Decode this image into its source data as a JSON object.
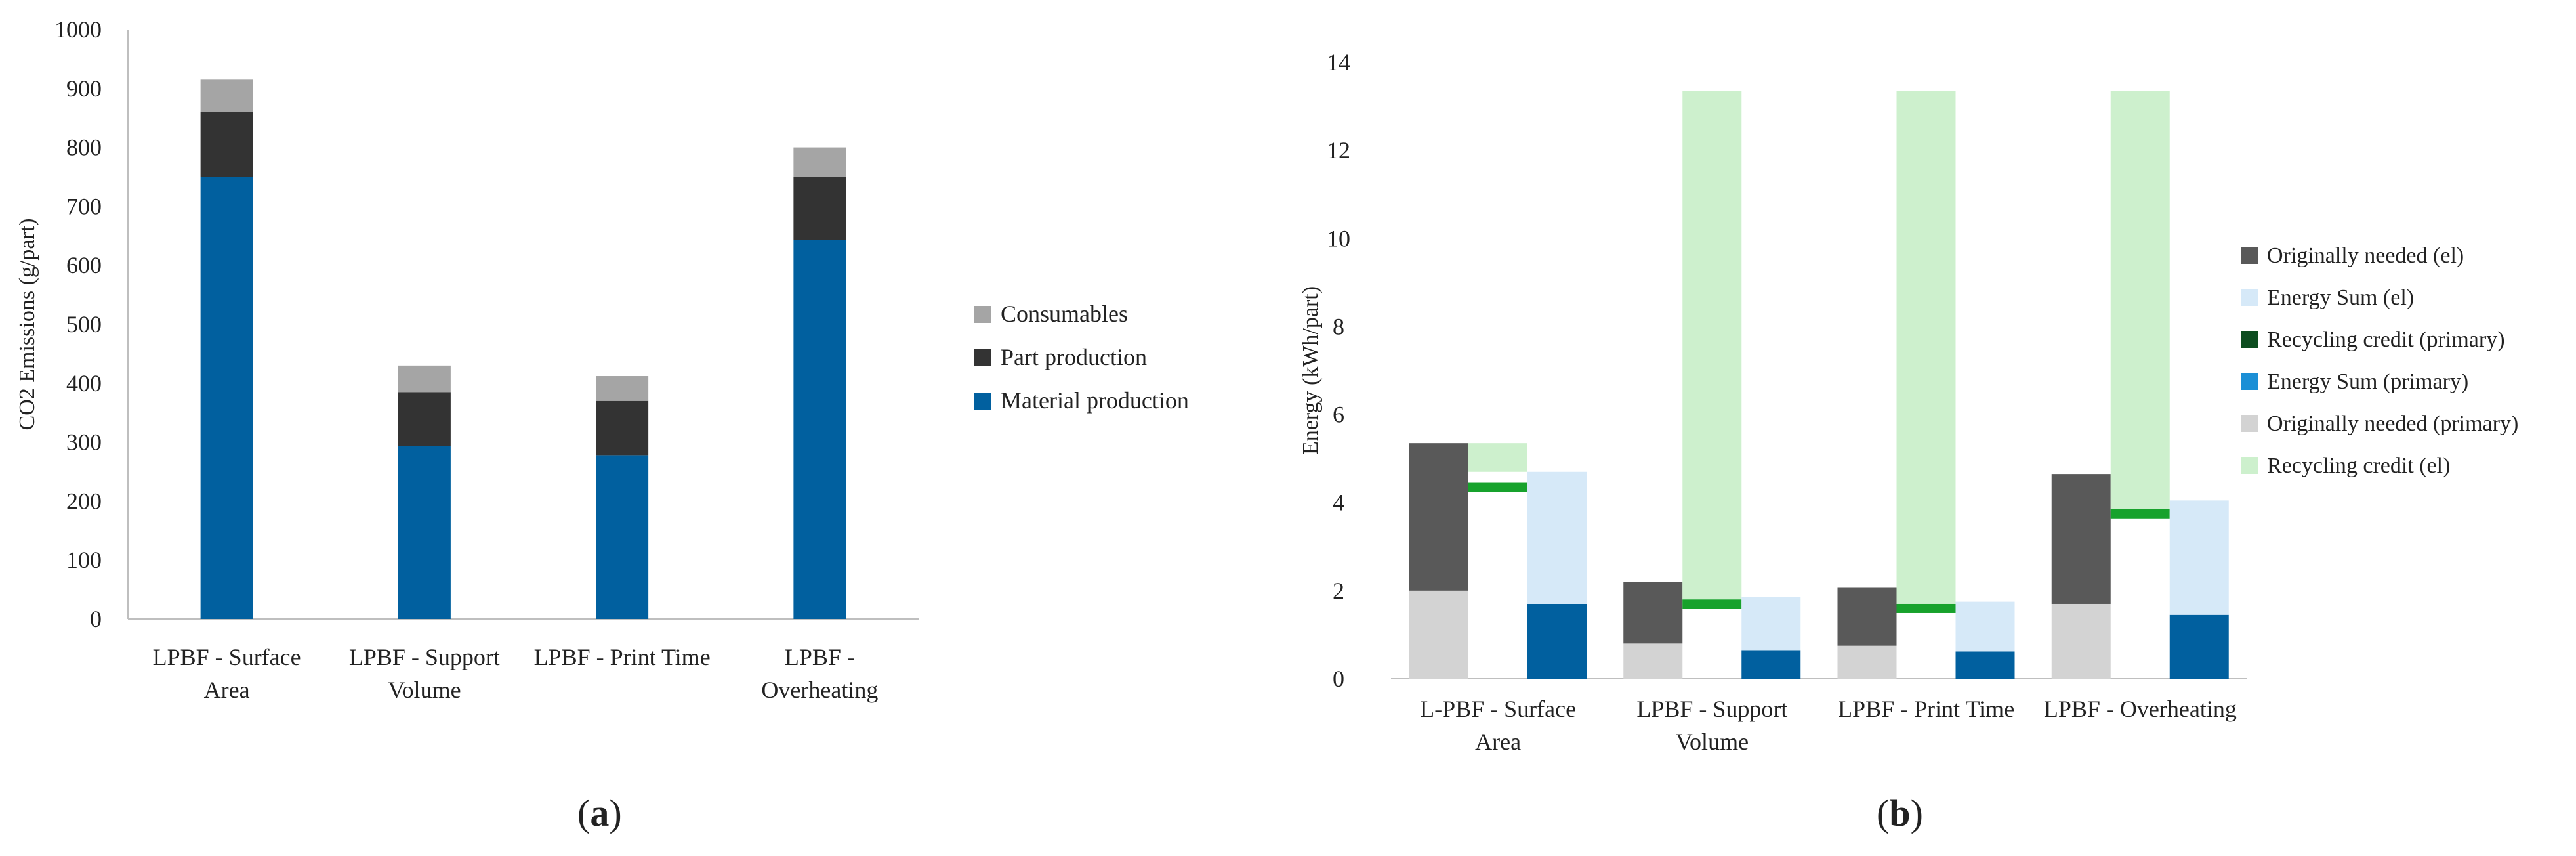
{
  "panel_labels": {
    "a": "a",
    "b": "b"
  },
  "chart_data": [
    {
      "type": "bar",
      "stacked": true,
      "title": "",
      "xlabel": "",
      "ylabel": "CO2 Emissions (g/part)",
      "ylim": [
        0,
        1000
      ],
      "yticks": [
        "0",
        "100",
        "200",
        "300",
        "400",
        "500",
        "600",
        "700",
        "800",
        "900",
        "1000"
      ],
      "categories": [
        [
          "LPBF - Surface",
          "Area"
        ],
        [
          "LPBF - Support",
          "Volume"
        ],
        [
          "LPBF - Print Time"
        ],
        [
          "LPBF -",
          "Overheating"
        ]
      ],
      "legend_position": "right",
      "series": [
        {
          "name": "Material production",
          "color": "#01609f",
          "values": [
            750,
            293,
            278,
            643
          ]
        },
        {
          "name": "Part production",
          "color": "#333333",
          "values": [
            110,
            92,
            92,
            107
          ]
        },
        {
          "name": "Consumables",
          "color": "#a5a5a5",
          "values": [
            55,
            45,
            42,
            50
          ]
        }
      ],
      "legend_order": [
        "Consumables",
        "Part production",
        "Material production"
      ]
    },
    {
      "type": "bar",
      "stacked": true,
      "title": "",
      "xlabel": "",
      "ylabel": "Energy (kWh/part)",
      "ylim": [
        0,
        14
      ],
      "yticks": [
        "0",
        "2",
        "4",
        "6",
        "8",
        "10",
        "12",
        "14"
      ],
      "categories": [
        [
          "L-PBF - Surface",
          "Area"
        ],
        [
          "LPBF - Support",
          "Volume"
        ],
        [
          "LPBF - Print Time"
        ],
        [
          "LPBF - Overheating"
        ]
      ],
      "legend_position": "right",
      "bar_groups": [
        {
          "needed_primary": 2.0,
          "needed_el": 3.35,
          "credit_el_low": 4.7,
          "credit_el_high": 5.35,
          "credit_primary_low": 4.25,
          "credit_primary_high": 4.45,
          "sum_primary": 1.7,
          "sum_el": 4.7
        },
        {
          "needed_primary": 0.8,
          "needed_el": 1.4,
          "credit_el_low": 1.8,
          "credit_el_high": 13.35,
          "credit_primary_low": 1.65,
          "credit_primary_high": 1.8,
          "sum_primary": 0.65,
          "sum_el": 1.85
        },
        {
          "needed_primary": 0.75,
          "needed_el": 1.33,
          "credit_el_low": 1.7,
          "credit_el_high": 13.35,
          "credit_primary_low": 1.6,
          "credit_primary_high": 1.7,
          "sum_primary": 0.62,
          "sum_el": 1.75
        },
        {
          "needed_primary": 1.7,
          "needed_el": 2.95,
          "credit_el_low": 3.8,
          "credit_el_high": 13.35,
          "credit_primary_low": 3.65,
          "credit_primary_high": 3.85,
          "sum_primary": 1.45,
          "sum_el": 4.05
        }
      ],
      "series": [
        {
          "name": "Originally needed (el)",
          "color": "#595959"
        },
        {
          "name": "Energy Sum (el)",
          "color": "#d6e9f8"
        },
        {
          "name": "Recycling credit (primary)",
          "color": "#0d4d1f"
        },
        {
          "name": "Energy Sum (primary)",
          "color": "#1b8fd6"
        },
        {
          "name": "Originally needed (primary)",
          "color": "#d3d3d3"
        },
        {
          "name": "Recycling credit (el)",
          "color": "#cdf0cd"
        }
      ],
      "marker_color": "#17a22c",
      "energy_sum_primary_bar_color": "#01609f"
    }
  ]
}
